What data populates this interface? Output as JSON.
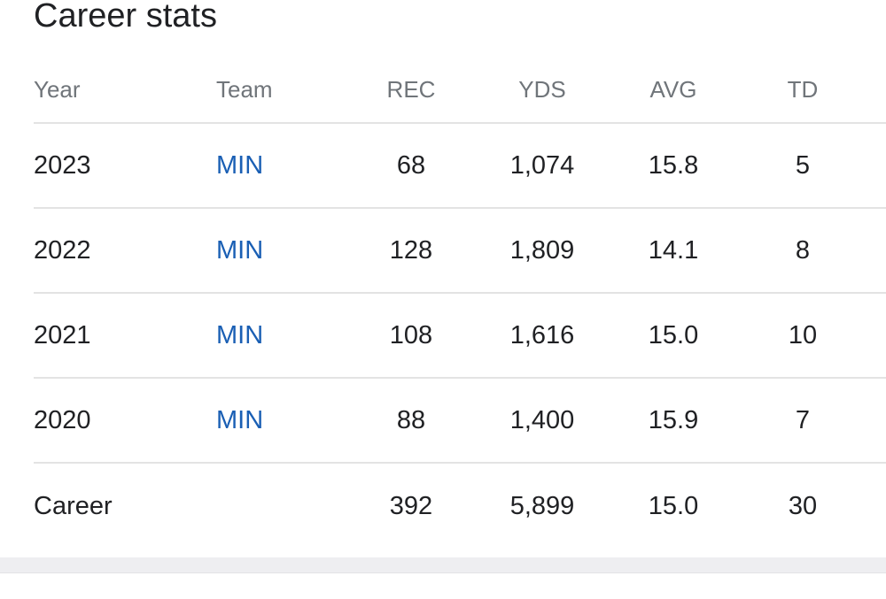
{
  "section_title": "Career stats",
  "columns": {
    "year": "Year",
    "team": "Team",
    "rec": "REC",
    "yds": "YDS",
    "avg": "AVG",
    "td": "TD"
  },
  "rows": [
    {
      "year": "2023",
      "team": "MIN",
      "rec": "68",
      "yds": "1,074",
      "avg": "15.8",
      "td": "5"
    },
    {
      "year": "2022",
      "team": "MIN",
      "rec": "128",
      "yds": "1,809",
      "avg": "14.1",
      "td": "8"
    },
    {
      "year": "2021",
      "team": "MIN",
      "rec": "108",
      "yds": "1,616",
      "avg": "15.0",
      "td": "10"
    },
    {
      "year": "2020",
      "team": "MIN",
      "rec": "88",
      "yds": "1,400",
      "avg": "15.9",
      "td": "7"
    }
  ],
  "career": {
    "label": "Career",
    "rec": "392",
    "yds": "5,899",
    "avg": "15.0",
    "td": "30"
  },
  "colors": {
    "link": "#1a5fb4",
    "header_text": "#70757a",
    "divider": "#e3e3e3"
  }
}
